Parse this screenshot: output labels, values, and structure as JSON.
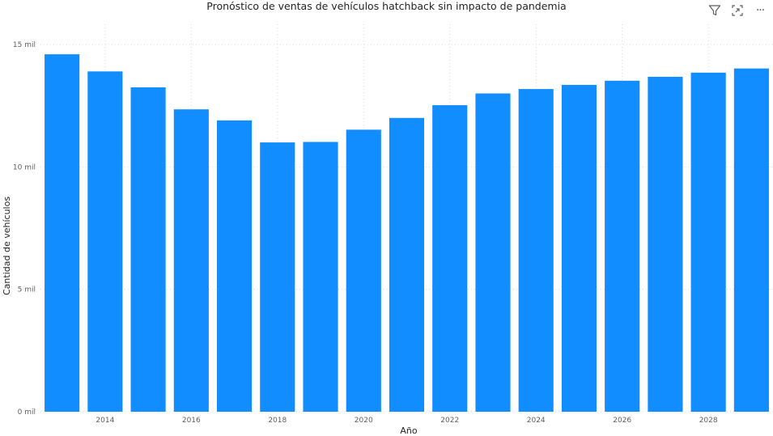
{
  "toolbar": {
    "filter_icon": "filter-icon",
    "focus_icon": "focus-mode-icon",
    "more_icon": "more-options-icon",
    "more_label": "···"
  },
  "colors": {
    "bar": "#118DFF",
    "grid": "#d9d9d9",
    "text": "#605E5C"
  },
  "chart_data": {
    "type": "bar",
    "title": "Pronóstico de ventas de vehículos hatchback sin impacto de pandemia",
    "xlabel": "Año",
    "ylabel": "Cantidad de vehículos",
    "categories": [
      2013,
      2014,
      2015,
      2016,
      2017,
      2018,
      2019,
      2020,
      2021,
      2022,
      2023,
      2024,
      2025,
      2026,
      2027,
      2028,
      2029
    ],
    "x_tick_labels": [
      "2014",
      "2016",
      "2018",
      "2020",
      "2022",
      "2024",
      "2026",
      "2028"
    ],
    "y_tick_labels": [
      "0 mil",
      "5 mil",
      "10 mil",
      "15 mil"
    ],
    "y_ticks": [
      0,
      5000,
      10000,
      15000
    ],
    "values": [
      14600,
      13900,
      13250,
      12350,
      11900,
      11000,
      11020,
      11520,
      12000,
      12520,
      13000,
      13180,
      13350,
      13520,
      13680,
      13850,
      14020
    ],
    "ylim": [
      0,
      15000
    ],
    "grid": true
  }
}
